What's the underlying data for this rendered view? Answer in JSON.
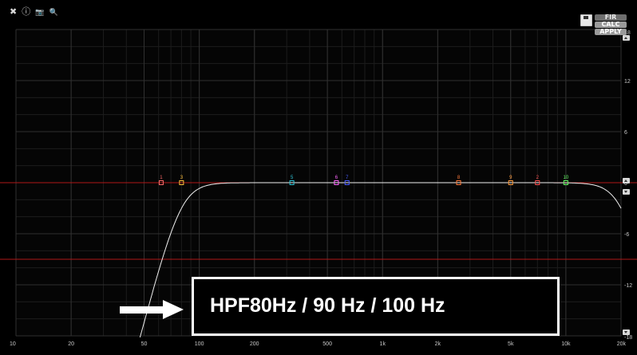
{
  "toolbar": {
    "close_icon": "✖",
    "info_icon": "ⓘ",
    "camera_icon": "📷",
    "zoom_icon": "🔍"
  },
  "panel": {
    "fir_label": "FIR",
    "calc_label": "CALC",
    "apply_label": "APPLY"
  },
  "axis": {
    "x_ticks": [
      {
        "v": 10,
        "label": "10"
      },
      {
        "v": 20,
        "label": "20"
      },
      {
        "v": 50,
        "label": "50"
      },
      {
        "v": 100,
        "label": "100"
      },
      {
        "v": 200,
        "label": "200"
      },
      {
        "v": 500,
        "label": "500"
      },
      {
        "v": 1000,
        "label": "1k"
      },
      {
        "v": 2000,
        "label": "2k"
      },
      {
        "v": 5000,
        "label": "5k"
      },
      {
        "v": 10000,
        "label": "10k"
      },
      {
        "v": 20000,
        "label": "20k"
      }
    ],
    "y_ticks": [
      {
        "v": 18,
        "label": "18"
      },
      {
        "v": 12,
        "label": "12"
      },
      {
        "v": 6,
        "label": "6"
      },
      {
        "v": 0,
        "label": "0"
      },
      {
        "v": -6,
        "label": "-6"
      },
      {
        "v": -12,
        "label": "-12"
      },
      {
        "v": -18,
        "label": "-18"
      }
    ],
    "x_range": [
      10,
      20000
    ],
    "y_range": [
      -18,
      18
    ],
    "x_scale": "log"
  },
  "ref_lines_db": [
    0,
    -9
  ],
  "filter_points": [
    {
      "label": "1",
      "freq": 62,
      "color": "#ff6a6a"
    },
    {
      "label": "3",
      "freq": 80,
      "color": "#ffbf3a"
    },
    {
      "label": "5",
      "freq": 320,
      "color": "#2ec4d6"
    },
    {
      "label": "6",
      "freq": 560,
      "color": "#ff66ff"
    },
    {
      "label": "7",
      "freq": 640,
      "color": "#4a5cff"
    },
    {
      "label": "8",
      "freq": 2600,
      "color": "#ff7a3a"
    },
    {
      "label": "9",
      "freq": 5000,
      "color": "#ff9a3a"
    },
    {
      "label": "2",
      "freq": 7000,
      "color": "#ff5050"
    },
    {
      "label": "10",
      "freq": 10000,
      "color": "#66ff66"
    }
  ],
  "response_curve": {
    "hpf_hz": 80,
    "lpf_hz": 20000
  },
  "annotation": {
    "text": "HPF80Hz / 90 Hz / 100 Hz"
  }
}
